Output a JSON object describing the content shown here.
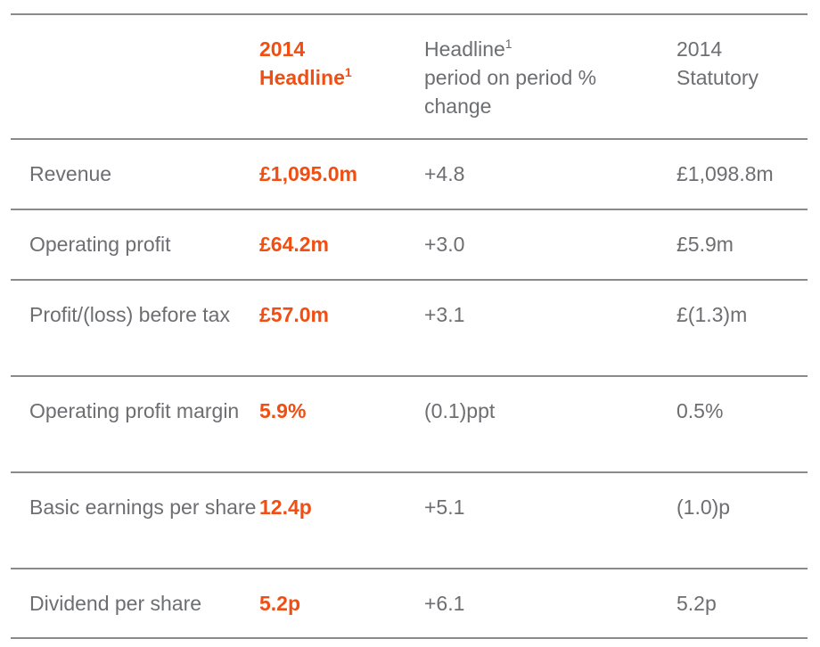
{
  "header": {
    "col2": {
      "line1": "2014",
      "line2": "Headline",
      "sup": "1"
    },
    "col3": {
      "line1": "Headline",
      "sup": "1",
      "line2": "period on period %",
      "line3": "change"
    },
    "col4": {
      "line1": "2014",
      "line2": "Statutory"
    }
  },
  "rows": [
    {
      "label": "Revenue",
      "headline": "£1,095.0m",
      "change": "+4.8",
      "statutory": "£1,098.8m"
    },
    {
      "label": "Operating profit",
      "headline": "£64.2m",
      "change": "+3.0",
      "statutory": "£5.9m"
    },
    {
      "label": "Profit/(loss) before tax",
      "headline": "£57.0m",
      "change": "+3.1",
      "statutory": "£(1.3)m"
    },
    {
      "label": "Operating profit margin",
      "headline": "5.9%",
      "change": "(0.1)ppt",
      "statutory": "0.5%"
    },
    {
      "label": "Basic earnings per share",
      "headline": "12.4p",
      "change": "+5.1",
      "statutory": "(1.0)p"
    },
    {
      "label": "Dividend per share",
      "headline": "5.2p",
      "change": "+6.1",
      "statutory": "5.2p"
    }
  ],
  "colors": {
    "accent": "#f04e12",
    "text": "#6d6e71",
    "rule": "#8a8a8c"
  }
}
